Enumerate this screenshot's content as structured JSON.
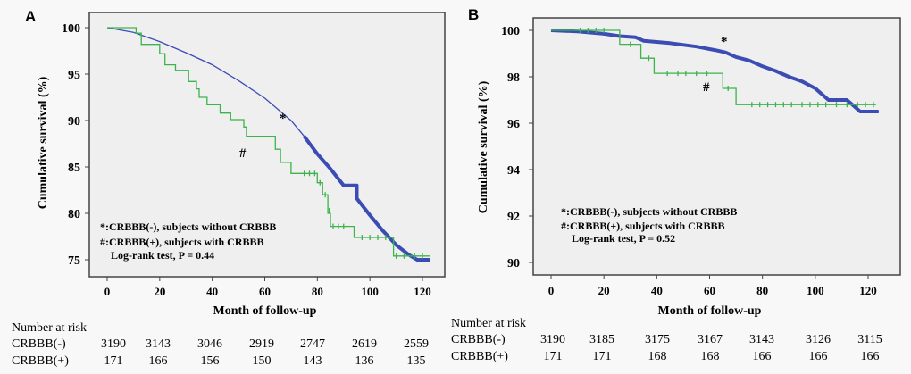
{
  "chart_data": [
    {
      "panel": "A",
      "type": "line",
      "xlabel": "Month of follow-up",
      "ylabel": "Cumulative survival (%)",
      "xlim": [
        0,
        120
      ],
      "ylim": [
        75,
        100
      ],
      "xticks": [
        "0",
        "20",
        "40",
        "60",
        "80",
        "100",
        "120"
      ],
      "yticks": [
        "100",
        "95",
        "90",
        "85",
        "80",
        "75"
      ],
      "ytick_values": [
        100,
        95,
        90,
        85,
        80,
        75
      ],
      "series": [
        {
          "name": "CRBBB(-)",
          "marker": "*",
          "color": "#3b4cb5",
          "points": [
            [
              0,
              100
            ],
            [
              10,
              99.5
            ],
            [
              20,
              98.5
            ],
            [
              30,
              97.3
            ],
            [
              40,
              96
            ],
            [
              50,
              94.3
            ],
            [
              60,
              92.4
            ],
            [
              70,
              90
            ],
            [
              75,
              88.3
            ],
            [
              80,
              86.4
            ],
            [
              85,
              84.8
            ],
            [
              90,
              83
            ],
            [
              91,
              83
            ],
            [
              95,
              83
            ],
            [
              95,
              81.6
            ],
            [
              100,
              79.8
            ],
            [
              105,
              78.1
            ],
            [
              110,
              76.6
            ],
            [
              115,
              75.5
            ],
            [
              118,
              75
            ],
            [
              123,
              75
            ]
          ]
        },
        {
          "name": "CRBBB(+)",
          "marker": "#",
          "color": "#3cb44b",
          "points": [
            [
              0,
              100
            ],
            [
              11,
              100
            ],
            [
              11,
              99.4
            ],
            [
              13,
              99.4
            ],
            [
              13,
              98.2
            ],
            [
              20,
              98.2
            ],
            [
              20,
              97.2
            ],
            [
              22,
              97.2
            ],
            [
              22,
              96
            ],
            [
              26,
              96
            ],
            [
              26,
              95.4
            ],
            [
              31,
              95.4
            ],
            [
              31,
              94.2
            ],
            [
              34,
              94.2
            ],
            [
              34,
              93.4
            ],
            [
              35,
              93.4
            ],
            [
              35,
              92.5
            ],
            [
              38,
              92.5
            ],
            [
              38,
              91.7
            ],
            [
              43,
              91.7
            ],
            [
              43,
              90.8
            ],
            [
              47,
              90.8
            ],
            [
              47,
              90.1
            ],
            [
              52,
              90.1
            ],
            [
              52,
              89.3
            ],
            [
              53,
              89.3
            ],
            [
              53,
              88.3
            ],
            [
              64,
              88.3
            ],
            [
              64,
              86.9
            ],
            [
              66,
              86.9
            ],
            [
              66,
              85.5
            ],
            [
              70,
              85.5
            ],
            [
              70,
              84.3
            ],
            [
              80,
              84.3
            ],
            [
              80,
              83.3
            ],
            [
              82,
              83.3
            ],
            [
              82,
              82
            ],
            [
              84,
              82
            ],
            [
              84,
              80
            ],
            [
              85,
              80
            ],
            [
              85,
              78.6
            ],
            [
              94,
              78.6
            ],
            [
              94,
              77.4
            ],
            [
              109,
              77.4
            ],
            [
              109,
              75.4
            ],
            [
              123,
              75.4
            ]
          ],
          "censored": [
            [
              75,
              84.3
            ],
            [
              77,
              84.3
            ],
            [
              79,
              84.3
            ],
            [
              81,
              83.3
            ],
            [
              83,
              82
            ],
            [
              84.5,
              80.3
            ],
            [
              86,
              78.6
            ],
            [
              88,
              78.6
            ],
            [
              90,
              78.6
            ],
            [
              97,
              77.4
            ],
            [
              100,
              77.4
            ],
            [
              103,
              77.4
            ],
            [
              106,
              77.4
            ],
            [
              110,
              75.4
            ],
            [
              113,
              75.4
            ],
            [
              117,
              75.4
            ],
            [
              120,
              75.4
            ]
          ]
        }
      ],
      "annotations": {
        "star": "*",
        "hash": "#",
        "legend_line1": "*:CRBBB(-), subjects without CRBBB",
        "legend_line2": "#:CRBBB(+), subjects with CRBBB",
        "legend_line3": "Log-rank test, P = 0.44"
      },
      "risk_table": {
        "title": "Number at risk",
        "rows": [
          {
            "label": "CRBBB(-)",
            "values": [
              "3190",
              "3143",
              "3046",
              "2919",
              "2747",
              "2619",
              "2559"
            ]
          },
          {
            "label": "CRBBB(+)",
            "values": [
              "171",
              "166",
              "156",
              "150",
              "143",
              "136",
              "135"
            ]
          }
        ]
      }
    },
    {
      "panel": "B",
      "type": "line",
      "xlabel": "Month of follow-up",
      "ylabel": "Cumulative survival (%)",
      "xlim": [
        0,
        120
      ],
      "ylim": [
        90,
        100
      ],
      "xticks": [
        "0",
        "20",
        "40",
        "60",
        "80",
        "100",
        "120"
      ],
      "yticks": [
        "100",
        "98",
        "96",
        "94",
        "92",
        "90"
      ],
      "ytick_values": [
        100,
        98,
        96,
        94,
        92,
        90
      ],
      "series": [
        {
          "name": "CRBBB(-)",
          "marker": "*",
          "color": "#3b4cb5",
          "points": [
            [
              0,
              100
            ],
            [
              10,
              99.95
            ],
            [
              20,
              99.85
            ],
            [
              26,
              99.75
            ],
            [
              32,
              99.7
            ],
            [
              35,
              99.55
            ],
            [
              45,
              99.45
            ],
            [
              55,
              99.3
            ],
            [
              62,
              99.15
            ],
            [
              66,
              99.05
            ],
            [
              70,
              98.85
            ],
            [
              75,
              98.7
            ],
            [
              80,
              98.45
            ],
            [
              85,
              98.25
            ],
            [
              90,
              98.0
            ],
            [
              95,
              97.8
            ],
            [
              100,
              97.5
            ],
            [
              103,
              97.2
            ],
            [
              105,
              97.0
            ],
            [
              112,
              97.0
            ],
            [
              114,
              96.8
            ],
            [
              117,
              96.5
            ],
            [
              124,
              96.5
            ]
          ]
        },
        {
          "name": "CRBBB(+)",
          "marker": "#",
          "color": "#3cb44b",
          "points": [
            [
              0,
              100
            ],
            [
              26,
              100
            ],
            [
              26,
              99.4
            ],
            [
              34,
              99.4
            ],
            [
              34,
              98.8
            ],
            [
              39,
              98.8
            ],
            [
              39,
              98.15
            ],
            [
              65,
              98.15
            ],
            [
              65,
              97.5
            ],
            [
              70,
              97.5
            ],
            [
              70,
              96.8
            ],
            [
              123,
              96.8
            ]
          ],
          "censored": [
            [
              11,
              100
            ],
            [
              14,
              100
            ],
            [
              17,
              100
            ],
            [
              20,
              100
            ],
            [
              30,
              99.4
            ],
            [
              37,
              98.8
            ],
            [
              44,
              98.15
            ],
            [
              48,
              98.15
            ],
            [
              51,
              98.15
            ],
            [
              55,
              98.15
            ],
            [
              59,
              98.15
            ],
            [
              67,
              97.5
            ],
            [
              76,
              96.8
            ],
            [
              79,
              96.8
            ],
            [
              82,
              96.8
            ],
            [
              85,
              96.8
            ],
            [
              88,
              96.8
            ],
            [
              91,
              96.8
            ],
            [
              95,
              96.8
            ],
            [
              98,
              96.8
            ],
            [
              101,
              96.8
            ],
            [
              104,
              96.8
            ],
            [
              108,
              96.8
            ],
            [
              112,
              96.8
            ],
            [
              116,
              96.8
            ],
            [
              119,
              96.8
            ],
            [
              122,
              96.8
            ]
          ]
        }
      ],
      "annotations": {
        "star": "*",
        "hash": "#",
        "legend_line1": "*:CRBBB(-), subjects without CRBBB",
        "legend_line2": "#:CRBBB(+), subjects with CRBBB",
        "legend_line3": "Log-rank test, P = 0.52"
      },
      "risk_table": {
        "title": "Number at risk",
        "rows": [
          {
            "label": "CRBBB(-)",
            "values": [
              "3190",
              "3185",
              "3175",
              "3167",
              "3143",
              "3126",
              "3115"
            ]
          },
          {
            "label": "CRBBB(+)",
            "values": [
              "171",
              "171",
              "168",
              "168",
              "166",
              "166",
              "166"
            ]
          }
        ]
      }
    }
  ],
  "panel_labels": [
    "A",
    "B"
  ]
}
